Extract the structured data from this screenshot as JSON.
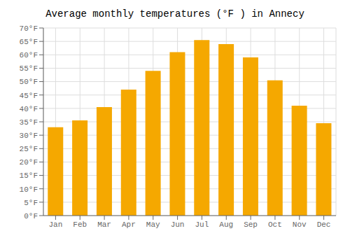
{
  "chart_data": {
    "type": "bar",
    "title": "Average monthly temperatures (°F ) in Annecy",
    "categories": [
      "Jan",
      "Feb",
      "Mar",
      "Apr",
      "May",
      "Jun",
      "Jul",
      "Aug",
      "Sep",
      "Oct",
      "Nov",
      "Dec"
    ],
    "values": [
      33,
      35.5,
      40.5,
      47,
      54,
      61,
      65.5,
      64,
      59,
      50.5,
      41,
      34.5
    ],
    "color": "#F5A800",
    "ylim": [
      0,
      70
    ],
    "yticks": [
      {
        "value": 0,
        "label": "0°F"
      },
      {
        "value": 5,
        "label": "5°F"
      },
      {
        "value": 10,
        "label": "10°F"
      },
      {
        "value": 15,
        "label": "15°F"
      },
      {
        "value": 20,
        "label": "20°F"
      },
      {
        "value": 25,
        "label": "25°F"
      },
      {
        "value": 30,
        "label": "30°F"
      },
      {
        "value": 35,
        "label": "35°F"
      },
      {
        "value": 40,
        "label": "40°F"
      },
      {
        "value": 45,
        "label": "45°F"
      },
      {
        "value": 50,
        "label": "50°F"
      },
      {
        "value": 55,
        "label": "55°F"
      },
      {
        "value": 60,
        "label": "60°F"
      },
      {
        "value": 65,
        "label": "65°F"
      },
      {
        "value": 70,
        "label": "70°F"
      }
    ],
    "grid": true
  }
}
